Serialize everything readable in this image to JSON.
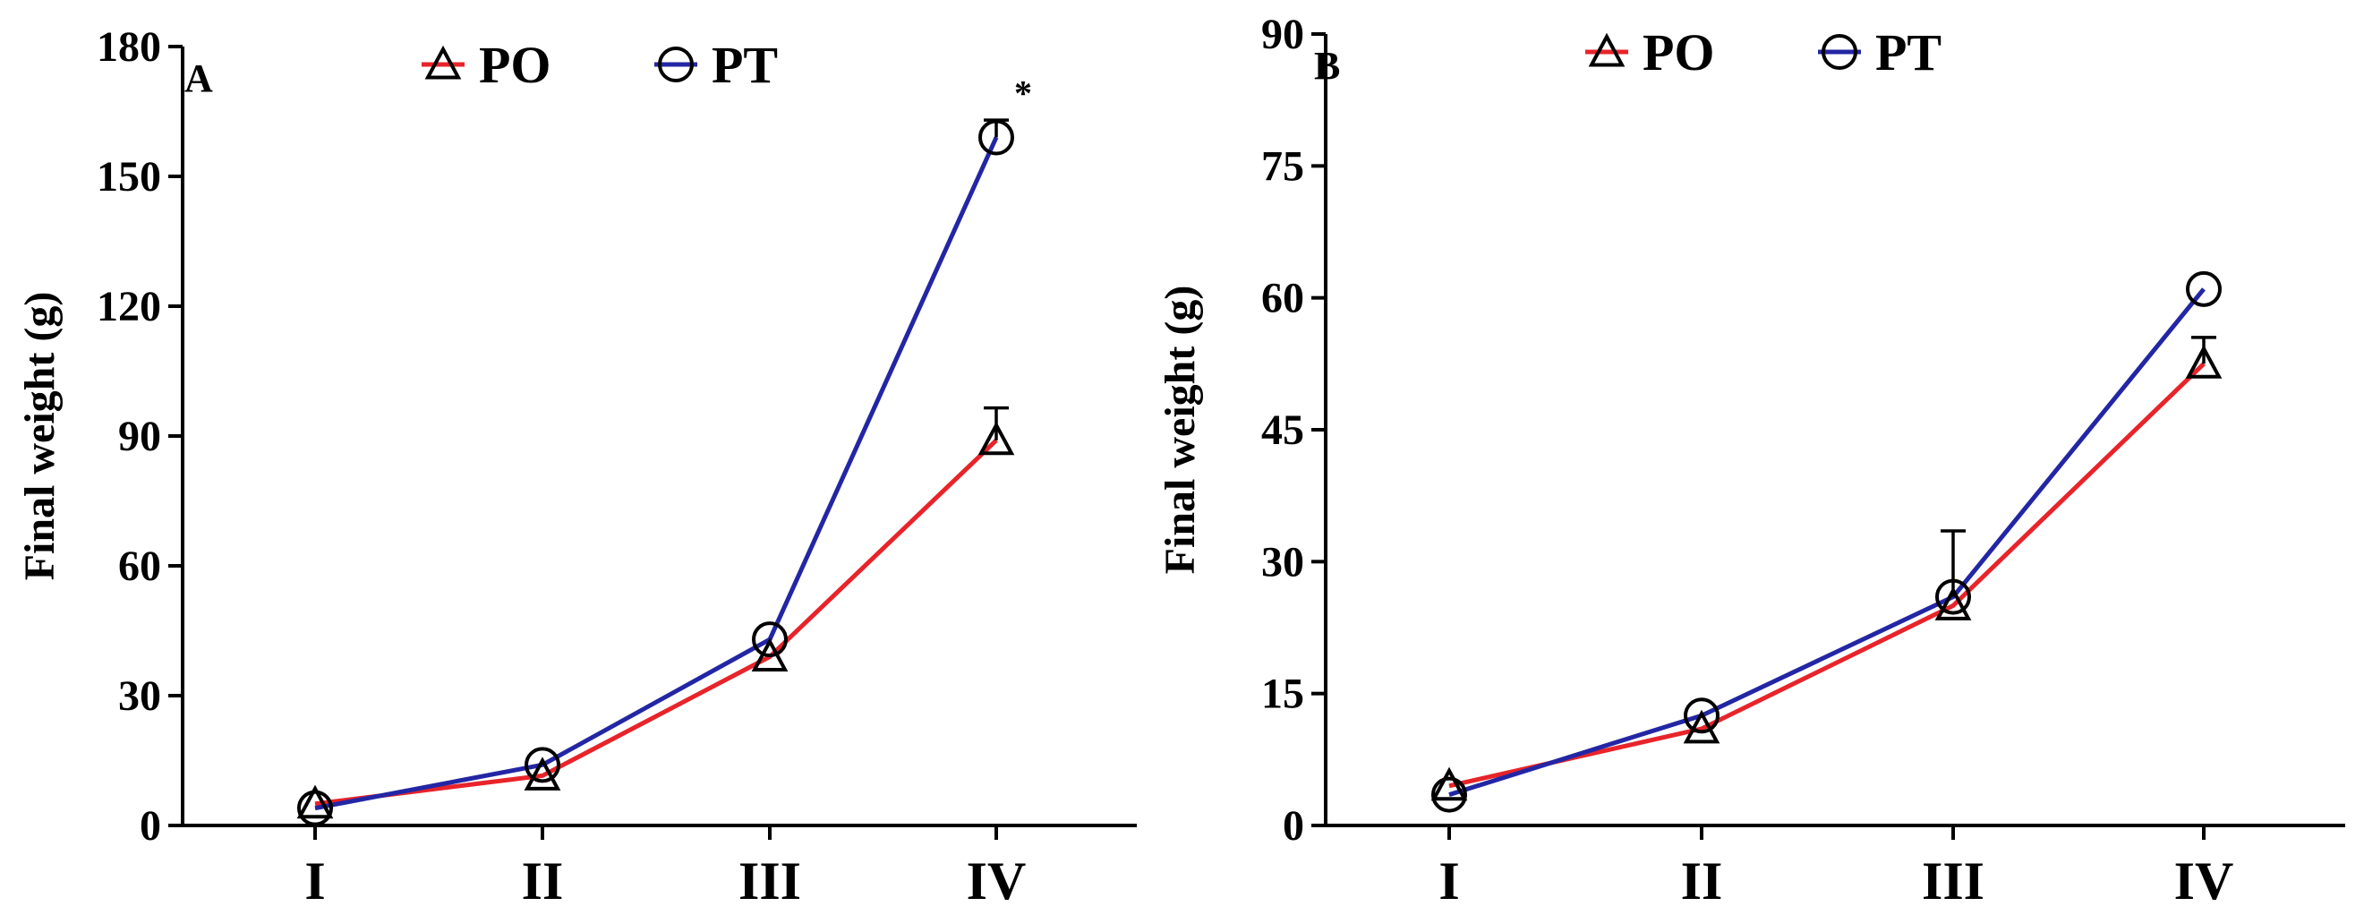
{
  "chart_data": [
    {
      "type": "line",
      "panel": "A",
      "title": "",
      "xlabel": "",
      "ylabel": "Final weight (g)",
      "ylim": [
        0,
        180
      ],
      "yticks": [
        0,
        30,
        60,
        90,
        120,
        150,
        180
      ],
      "categories": [
        "I",
        "II",
        "III",
        "IV"
      ],
      "legend": "top",
      "series": [
        {
          "name": "PO",
          "color": "#e8242a",
          "marker": "triangle",
          "values": [
            5,
            11.5,
            39,
            89
          ],
          "errors": [
            0,
            0,
            0,
            7.5
          ]
        },
        {
          "name": "PT",
          "color": "#2326a4",
          "marker": "circle",
          "values": [
            4,
            14,
            43,
            159
          ],
          "errors": [
            0,
            0,
            0,
            4
          ]
        }
      ],
      "annotations": [
        {
          "text": "*",
          "category": "IV"
        }
      ]
    },
    {
      "type": "line",
      "panel": "B",
      "title": "",
      "xlabel": "",
      "ylabel": "Final weight (g)",
      "ylim": [
        0,
        90
      ],
      "yticks": [
        0,
        15,
        30,
        45,
        60,
        75,
        90
      ],
      "categories": [
        "I",
        "II",
        "III",
        "IV"
      ],
      "legend": "top",
      "series": [
        {
          "name": "PO",
          "color": "#e8242a",
          "marker": "triangle",
          "values": [
            4.5,
            11,
            25,
            52.5
          ],
          "errors": [
            0,
            0,
            0,
            3
          ]
        },
        {
          "name": "PT",
          "color": "#2326a4",
          "marker": "circle",
          "values": [
            3.5,
            12.5,
            26,
            61
          ],
          "errors": [
            0,
            0,
            7.5,
            0
          ]
        }
      ],
      "annotations": []
    }
  ]
}
